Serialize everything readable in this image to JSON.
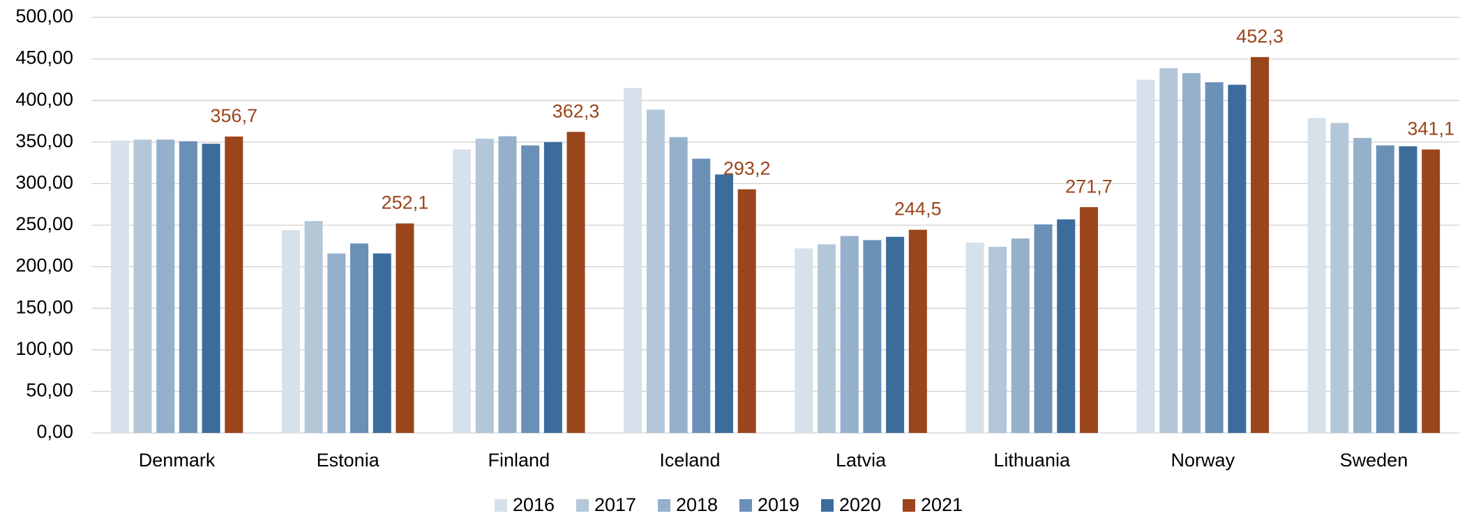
{
  "chart_data": {
    "type": "bar",
    "categories": [
      "Denmark",
      "Estonia",
      "Finland",
      "Iceland",
      "Latvia",
      "Lithuania",
      "Norway",
      "Sweden"
    ],
    "series": [
      {
        "name": "2016",
        "color": "#d6e1eb",
        "values": [
          352,
          244,
          341,
          415,
          222,
          229,
          425,
          379
        ]
      },
      {
        "name": "2017",
        "color": "#b4c7d9",
        "values": [
          353,
          255,
          354,
          389,
          227,
          224,
          439,
          373
        ]
      },
      {
        "name": "2018",
        "color": "#94b0cb",
        "values": [
          353,
          216,
          357,
          356,
          237,
          234,
          433,
          355
        ]
      },
      {
        "name": "2019",
        "color": "#6b90b7",
        "values": [
          351,
          228,
          346,
          330,
          232,
          251,
          422,
          346
        ]
      },
      {
        "name": "2020",
        "color": "#3b6c9c",
        "values": [
          348,
          216,
          350,
          311,
          236,
          257,
          419,
          345
        ]
      },
      {
        "name": "2021",
        "color": "#9a451b",
        "values": [
          356.7,
          252.1,
          362.3,
          293.2,
          244.5,
          271.7,
          452.3,
          341.1
        ],
        "value_labels": [
          "356,7",
          "252,1",
          "362,3",
          "293,2",
          "244,5",
          "271,7",
          "452,3",
          "341,1"
        ]
      }
    ],
    "ylim": [
      0,
      500
    ],
    "yticks": [
      {
        "value": 0,
        "label": "0,00"
      },
      {
        "value": 50,
        "label": "50,00"
      },
      {
        "value": 100,
        "label": "100,00"
      },
      {
        "value": 150,
        "label": "150,00"
      },
      {
        "value": 200,
        "label": "200,00"
      },
      {
        "value": 250,
        "label": "250,00"
      },
      {
        "value": 300,
        "label": "300,00"
      },
      {
        "value": 350,
        "label": "350,00"
      },
      {
        "value": 400,
        "label": "400,00"
      },
      {
        "value": 450,
        "label": "450,00"
      },
      {
        "value": 500,
        "label": "500,00"
      }
    ],
    "grid": true,
    "legend": "bottom"
  }
}
